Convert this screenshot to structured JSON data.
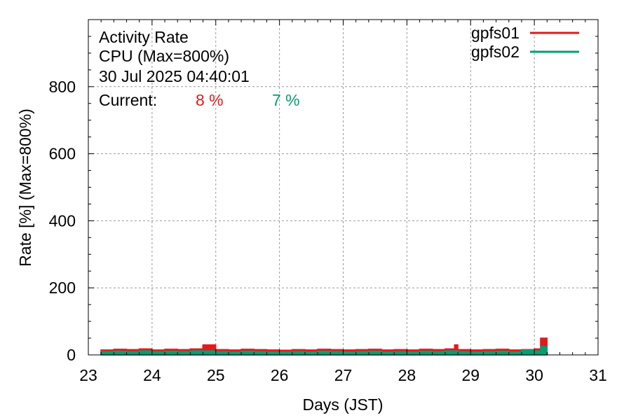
{
  "chart_data": {
    "type": "area",
    "title_lines": [
      "Activity Rate",
      "CPU (Max=800%)",
      "30 Jul 2025 04:40:01"
    ],
    "current_label": "Current:",
    "current_values": [
      "8 %",
      "7 %"
    ],
    "xlabel": "Days (JST)",
    "ylabel": "Rate [%]  (Max=800%)",
    "xlim": [
      23,
      31
    ],
    "ylim": [
      0,
      1000
    ],
    "x_ticks": [
      "23",
      "24",
      "25",
      "26",
      "27",
      "28",
      "29",
      "30",
      "31"
    ],
    "y_ticks": [
      "0",
      "200",
      "400",
      "600",
      "800"
    ],
    "grid": true,
    "legend_position": "top-right",
    "series": [
      {
        "name": "gpfs01",
        "color": "#e31a1c",
        "x": [
          23.2,
          23.4,
          23.6,
          23.8,
          24.0,
          24.2,
          24.4,
          24.6,
          24.8,
          25.0,
          25.2,
          25.4,
          25.6,
          25.8,
          26.0,
          26.2,
          26.4,
          26.6,
          26.8,
          27.0,
          27.2,
          27.4,
          27.6,
          27.8,
          28.0,
          28.2,
          28.4,
          28.6,
          28.75,
          28.8,
          29.0,
          29.2,
          29.4,
          29.6,
          29.8,
          30.0,
          30.1,
          30.2
        ],
        "y": [
          15,
          17,
          16,
          18,
          15,
          17,
          16,
          18,
          30,
          16,
          15,
          17,
          16,
          15,
          14,
          16,
          15,
          17,
          16,
          15,
          16,
          17,
          15,
          16,
          15,
          17,
          16,
          18,
          30,
          16,
          15,
          16,
          17,
          15,
          16,
          18,
          50,
          8
        ]
      },
      {
        "name": "gpfs02",
        "color": "#009e73",
        "x": [
          23.2,
          23.4,
          23.6,
          23.8,
          24.0,
          24.2,
          24.4,
          24.6,
          24.8,
          25.0,
          25.2,
          25.4,
          25.6,
          25.8,
          26.0,
          26.2,
          26.4,
          26.6,
          26.8,
          27.0,
          27.2,
          27.4,
          27.6,
          27.8,
          28.0,
          28.2,
          28.4,
          28.6,
          28.75,
          28.8,
          29.0,
          29.2,
          29.4,
          29.6,
          29.8,
          30.0,
          30.1,
          30.2
        ],
        "y": [
          10,
          11,
          10,
          12,
          10,
          11,
          10,
          12,
          12,
          10,
          9,
          11,
          10,
          9,
          9,
          10,
          9,
          11,
          10,
          9,
          10,
          11,
          9,
          10,
          9,
          11,
          10,
          12,
          12,
          10,
          9,
          10,
          11,
          9,
          15,
          12,
          25,
          7
        ]
      }
    ]
  }
}
